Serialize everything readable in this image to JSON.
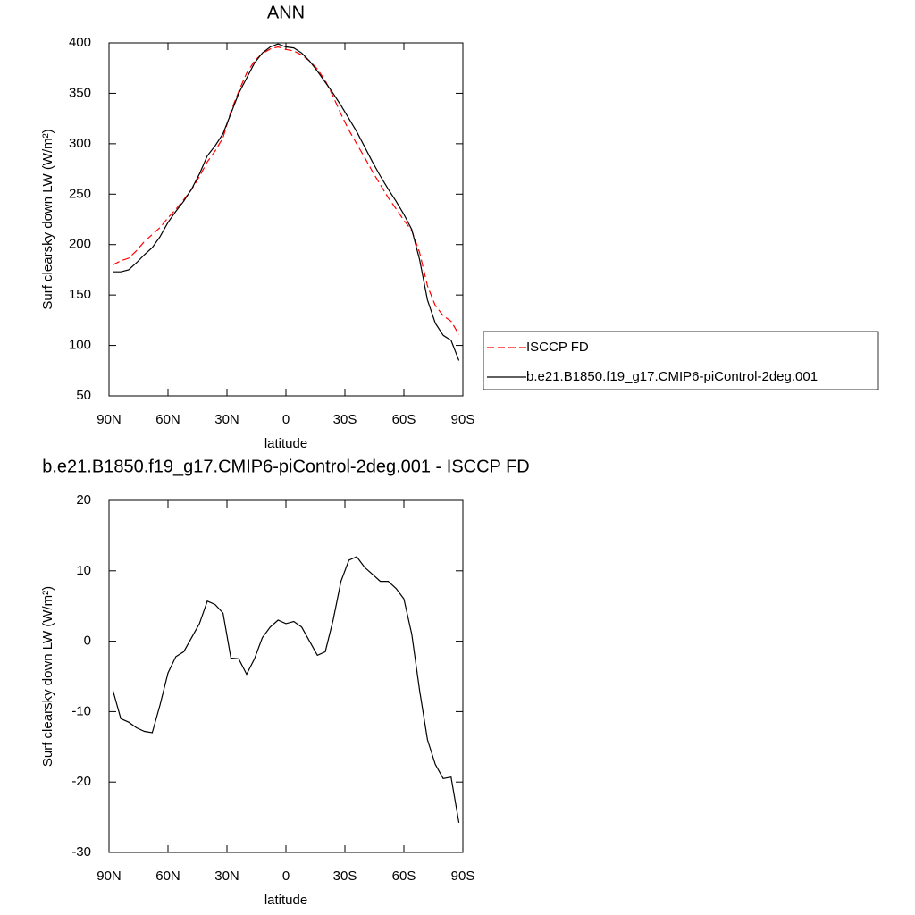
{
  "chart_data": [
    {
      "type": "line",
      "title": "ANN",
      "xlabel": "latitude",
      "ylabel": "Surf clearsky down LW (W/m²)",
      "x": [
        88,
        84,
        80,
        76,
        72,
        68,
        64,
        60,
        56,
        52,
        48,
        44,
        40,
        36,
        32,
        28,
        24,
        20,
        16,
        12,
        8,
        4,
        0,
        -4,
        -8,
        -12,
        -16,
        -20,
        -24,
        -28,
        -32,
        -36,
        -40,
        -44,
        -48,
        -52,
        -56,
        -60,
        -64,
        -68,
        -72,
        -76,
        -80,
        -84,
        -88
      ],
      "series": [
        {
          "name": "ISCCP FD",
          "color": "#ff0000",
          "dashed": true,
          "values": [
            180,
            184,
            186.5,
            194,
            203,
            210,
            217,
            226.5,
            235,
            244.5,
            254.5,
            267.5,
            282,
            293,
            306,
            332,
            352,
            370,
            382,
            389.5,
            394,
            396,
            393.5,
            392,
            388,
            382,
            374,
            362.5,
            347,
            329.5,
            313.5,
            300,
            286.5,
            272.5,
            259.5,
            246.5,
            235.5,
            224,
            214,
            192,
            159,
            139.5,
            129.5,
            124,
            110.8
          ]
        },
        {
          "name": "b.e21.B1850.f19_g17.CMIP6-piControl-2deg.001",
          "color": "#000000",
          "dashed": false,
          "values": [
            173,
            173,
            175,
            182,
            190,
            197,
            208,
            222,
            233,
            243,
            255,
            270,
            288,
            298,
            310,
            330,
            350,
            365,
            380,
            390,
            396,
            399,
            396,
            395,
            390,
            382,
            372,
            361,
            350,
            338,
            325,
            312,
            297,
            282,
            268,
            255,
            243,
            230,
            215,
            185,
            145,
            122,
            110,
            105,
            85
          ]
        }
      ],
      "xlim": [
        90,
        -90
      ],
      "xticks": [
        {
          "value": 90,
          "label": "90N"
        },
        {
          "value": 60,
          "label": "60N"
        },
        {
          "value": 30,
          "label": "30N"
        },
        0,
        {
          "value": -30,
          "label": "30S"
        },
        {
          "value": -60,
          "label": "60S"
        },
        {
          "value": -90,
          "label": "90S"
        }
      ],
      "ylim": [
        50,
        400
      ],
      "yticks": [
        50,
        100,
        150,
        200,
        250,
        300,
        350,
        400
      ],
      "legend": "right"
    },
    {
      "type": "line",
      "title": "b.e21.B1850.f19_g17.CMIP6-piControl-2deg.001 - ISCCP FD",
      "xlabel": "latitude",
      "ylabel": "Surf clearsky down LW (W/m²)",
      "x": [
        88,
        84,
        80,
        76,
        72,
        68,
        64,
        60,
        56,
        52,
        48,
        44,
        40,
        36,
        32,
        28,
        24,
        20,
        16,
        12,
        8,
        4,
        0,
        -4,
        -8,
        -12,
        -16,
        -20,
        -24,
        -28,
        -32,
        -36,
        -40,
        -44,
        -48,
        -52,
        -56,
        -60,
        -64,
        -68,
        -72,
        -76,
        -80,
        -84,
        -88
      ],
      "values": [
        -7,
        -11,
        -11.5,
        -12.3,
        -12.8,
        -13,
        -9,
        -4.5,
        -2.2,
        -1.5,
        0.5,
        2.5,
        5.7,
        5.2,
        4,
        -2.4,
        -2.5,
        -4.7,
        -2.5,
        0.5,
        2,
        3,
        2.5,
        2.8,
        2,
        0,
        -2,
        -1.5,
        3,
        8.5,
        11.5,
        12,
        10.5,
        9.5,
        8.5,
        8.5,
        7.5,
        6,
        1,
        -7,
        -14,
        -17.5,
        -19.5,
        -19.3,
        -25.8
      ],
      "color": "#000000",
      "xlim": [
        90,
        -90
      ],
      "xticks": [
        {
          "value": 90,
          "label": "90N"
        },
        {
          "value": 60,
          "label": "60N"
        },
        {
          "value": 30,
          "label": "30N"
        },
        0,
        {
          "value": -30,
          "label": "30S"
        },
        {
          "value": -60,
          "label": "60S"
        },
        {
          "value": -90,
          "label": "90S"
        }
      ],
      "ylim": [
        -30,
        20
      ],
      "yticks": [
        -30,
        -20,
        -10,
        0,
        10,
        20
      ]
    }
  ]
}
